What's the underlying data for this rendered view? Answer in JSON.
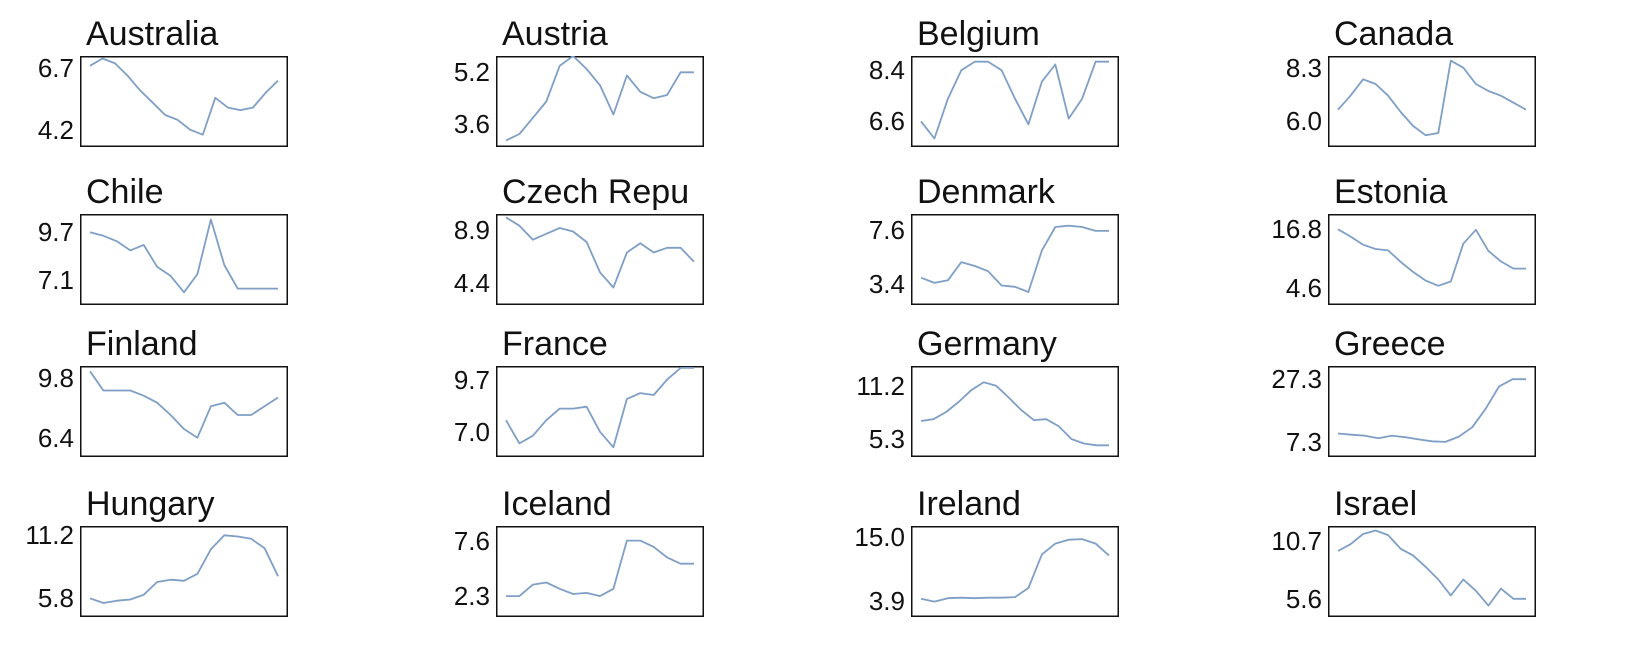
{
  "chart_data": [
    {
      "type": "line",
      "title": "Australia",
      "yticks": [
        "6.7",
        "4.2"
      ],
      "ytick_values": [
        6.7,
        4.2
      ],
      "ylim": [
        3.5,
        7.2
      ],
      "values": [
        6.8,
        7.1,
        6.9,
        6.4,
        5.8,
        5.3,
        4.8,
        4.6,
        4.2,
        4.0,
        5.5,
        5.1,
        5.0,
        5.1,
        5.7,
        6.2
      ]
    },
    {
      "type": "line",
      "title": "Austria",
      "yticks": [
        "5.2",
        "3.6"
      ],
      "ytick_values": [
        5.2,
        3.6
      ],
      "ylim": [
        2.9,
        5.7
      ],
      "values": [
        3.1,
        3.3,
        3.8,
        4.3,
        5.4,
        5.7,
        5.3,
        4.8,
        3.9,
        5.1,
        4.6,
        4.4,
        4.5,
        5.2,
        5.2
      ]
    },
    {
      "type": "line",
      "title": "Belgium",
      "yticks": [
        "8.4",
        "6.6"
      ],
      "ytick_values": [
        8.4,
        6.6
      ],
      "ylim": [
        5.7,
        8.9
      ],
      "values": [
        6.6,
        6.0,
        7.4,
        8.4,
        8.7,
        8.7,
        8.4,
        7.4,
        6.5,
        8.0,
        8.6,
        6.7,
        7.4,
        8.7,
        8.7
      ]
    },
    {
      "type": "line",
      "title": "Canada",
      "yticks": [
        "8.3",
        "6.0"
      ],
      "ytick_values": [
        8.3,
        6.0
      ],
      "ylim": [
        4.9,
        8.8
      ],
      "values": [
        6.5,
        7.1,
        7.8,
        7.6,
        7.1,
        6.4,
        5.8,
        5.4,
        5.5,
        8.6,
        8.3,
        7.6,
        7.3,
        7.1,
        6.8,
        6.5
      ]
    },
    {
      "type": "line",
      "title": "Chile",
      "yticks": [
        "9.7",
        "7.1"
      ],
      "ytick_values": [
        9.7,
        7.1
      ],
      "ylim": [
        5.7,
        10.7
      ],
      "values": [
        9.7,
        9.5,
        9.2,
        8.7,
        9.0,
        7.8,
        7.3,
        6.4,
        7.4,
        10.4,
        7.9,
        6.6,
        6.6,
        6.6,
        6.6
      ]
    },
    {
      "type": "line",
      "title": "Czech Repu",
      "yticks": [
        "8.9",
        "4.4"
      ],
      "ytick_values": [
        8.9,
        4.4
      ],
      "ylim": [
        2.5,
        10.3
      ],
      "values": [
        10.0,
        9.3,
        8.1,
        8.6,
        9.1,
        8.8,
        7.9,
        5.3,
        4.0,
        7.0,
        7.8,
        7.0,
        7.4,
        7.4,
        6.2
      ]
    },
    {
      "type": "line",
      "title": "Denmark",
      "yticks": [
        "7.6",
        "3.4"
      ],
      "ytick_values": [
        7.6,
        3.4
      ],
      "ylim": [
        1.8,
        8.8
      ],
      "values": [
        3.9,
        3.5,
        3.7,
        5.1,
        4.8,
        4.4,
        3.3,
        3.2,
        2.8,
        6.0,
        7.8,
        7.9,
        7.8,
        7.5,
        7.5
      ]
    },
    {
      "type": "line",
      "title": "Estonia",
      "yticks": [
        "16.8",
        "4.6"
      ],
      "ytick_values": [
        16.8,
        4.6
      ],
      "ylim": [
        1.0,
        20.0
      ],
      "values": [
        16.8,
        15.3,
        13.6,
        12.7,
        12.4,
        10.0,
        7.9,
        6.1,
        5.0,
        5.9,
        13.8,
        16.7,
        12.3,
        10.1,
        8.6,
        8.6
      ]
    },
    {
      "type": "line",
      "title": "Finland",
      "yticks": [
        "9.8",
        "6.4"
      ],
      "ytick_values": [
        9.8,
        6.4
      ],
      "ylim": [
        5.3,
        10.5
      ],
      "values": [
        10.2,
        9.1,
        9.1,
        9.1,
        8.8,
        8.4,
        7.7,
        6.9,
        6.4,
        8.2,
        8.4,
        7.7,
        7.7,
        8.2,
        8.7
      ]
    },
    {
      "type": "line",
      "title": "France",
      "yticks": [
        "9.7",
        "7.0"
      ],
      "ytick_values": [
        9.7,
        7.0
      ],
      "ylim": [
        5.7,
        10.4
      ],
      "values": [
        7.6,
        6.4,
        6.8,
        7.6,
        8.2,
        8.2,
        8.3,
        7.0,
        6.2,
        8.7,
        9.0,
        8.9,
        9.7,
        10.3,
        10.3
      ]
    },
    {
      "type": "line",
      "title": "Germany",
      "yticks": [
        "11.2",
        "5.3"
      ],
      "ytick_values": [
        11.2,
        5.3
      ],
      "ylim": [
        3.3,
        13.4
      ],
      "values": [
        7.3,
        7.5,
        8.3,
        9.4,
        10.7,
        11.6,
        11.2,
        9.9,
        8.5,
        7.4,
        7.5,
        6.7,
        5.3,
        4.8,
        4.6,
        4.6
      ]
    },
    {
      "type": "line",
      "title": "Greece",
      "yticks": [
        "27.3",
        "7.3"
      ],
      "ytick_values": [
        27.3,
        7.3
      ],
      "ylim": [
        2.5,
        31.5
      ],
      "values": [
        10.0,
        9.6,
        9.3,
        8.5,
        9.3,
        8.8,
        8.1,
        7.5,
        7.3,
        9.0,
        12.0,
        17.9,
        25.0,
        27.3,
        27.3
      ]
    },
    {
      "type": "line",
      "title": "Hungary",
      "yticks": [
        "11.2",
        "5.8"
      ],
      "ytick_values": [
        11.2,
        5.8
      ],
      "ylim": [
        4.2,
        12.0
      ],
      "values": [
        5.8,
        5.4,
        5.6,
        5.7,
        6.1,
        7.2,
        7.4,
        7.3,
        7.9,
        10.0,
        11.2,
        11.1,
        10.9,
        10.1,
        7.7
      ]
    },
    {
      "type": "line",
      "title": "Iceland",
      "yticks": [
        "7.6",
        "2.3"
      ],
      "ytick_values": [
        7.6,
        2.3
      ],
      "ylim": [
        0.3,
        9.0
      ],
      "values": [
        2.3,
        2.3,
        3.4,
        3.6,
        3.0,
        2.5,
        2.6,
        2.3,
        3.0,
        7.6,
        7.6,
        7.0,
        6.0,
        5.4,
        5.4
      ]
    },
    {
      "type": "line",
      "title": "Ireland",
      "yticks": [
        "15.0",
        "3.9"
      ],
      "ytick_values": [
        15.0,
        3.9
      ],
      "ylim": [
        1.0,
        17.0
      ],
      "values": [
        4.2,
        3.7,
        4.3,
        4.4,
        4.3,
        4.4,
        4.4,
        4.5,
        6.1,
        12.0,
        13.9,
        14.6,
        14.7,
        13.9,
        11.8
      ]
    },
    {
      "type": "line",
      "title": "Israel",
      "yticks": [
        "10.7",
        "5.6"
      ],
      "ytick_values": [
        10.7,
        5.6
      ],
      "ylim": [
        4.0,
        12.0
      ],
      "values": [
        9.8,
        10.4,
        11.3,
        11.6,
        11.2,
        10.0,
        9.4,
        8.4,
        7.3,
        5.9,
        7.3,
        6.3,
        5.0,
        6.5,
        5.6,
        5.6
      ]
    }
  ],
  "style": {
    "line_color": "#7f9fc6",
    "frame_color": "#111111"
  }
}
